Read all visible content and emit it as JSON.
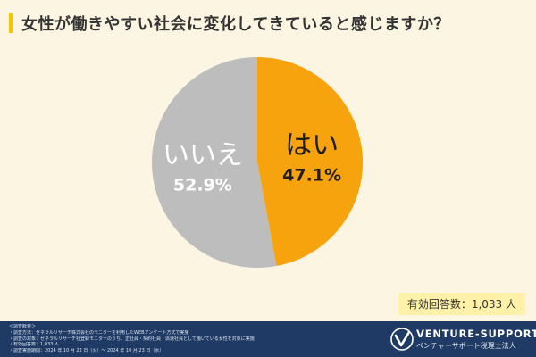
{
  "header": {
    "title": "女性が働きやすい社会に変化してきていると感じますか？"
  },
  "chart_data": {
    "type": "pie",
    "title": "女性が働きやすい社会に変化してきていると感じますか？",
    "slices": [
      {
        "label": "はい",
        "value": 47.1,
        "display": "47.1%",
        "color": "#f7a30e",
        "label_color": "#1e1e1e"
      },
      {
        "label": "いいえ",
        "value": 52.9,
        "display": "52.9%",
        "color": "#bdbdbd",
        "label_color": "#ffffff"
      }
    ],
    "start_angle": "12 o'clock",
    "direction": "clockwise"
  },
  "respondents": {
    "label": "有効回答数：1,033 人"
  },
  "footer": {
    "survey_lines": [
      "＜調査概要＞",
      "・調査方法：ゼネラルリサーチ株式会社のモニターを利用したWEBアンケート方式で実施",
      "・調査の対象：ゼネラルリサーチ社登録モニターのうち、正社員・契約社員・派遣社員として働いている女性を対象に実施",
      "・有効回答数：1,033 人",
      "・調査実施期間：2024 年 10 月 22 日（火）～ 2024 年 10 月 23 日（水）"
    ],
    "logo_text": "VENTURE-SUPPORT",
    "logo_subtext": "ベンチャーサポート税理士法人",
    "logo_icon": "v-check-logo-icon",
    "color": "#1f3a64"
  }
}
